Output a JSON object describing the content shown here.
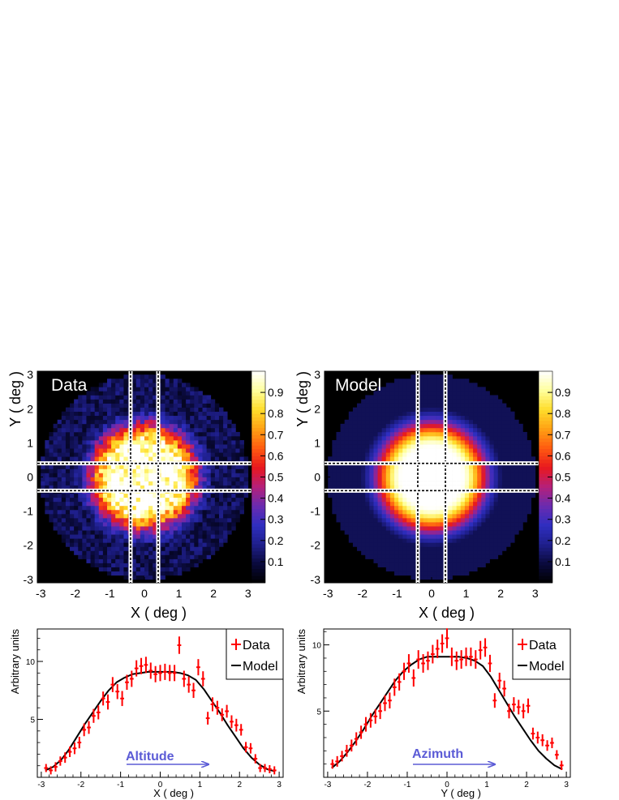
{
  "colors": {
    "data_marker": "#ff0000",
    "model_line": "#000000",
    "annotation": "#5b5bd6",
    "map_background": "#000000",
    "palette": [
      "#000000",
      "#0a0a3c",
      "#1f1f8c",
      "#2e2ec0",
      "#6a2bb0",
      "#b5207a",
      "#e8181e",
      "#ff5a10",
      "#ffa014",
      "#ffdc2a",
      "#ffff9c",
      "#ffffff"
    ]
  },
  "chart_data": [
    {
      "type": "heatmap",
      "id": "data_map",
      "title": "Data",
      "xlabel": "X ( deg )",
      "ylabel": "Y ( deg )",
      "xlim": [
        -3.1,
        3.1
      ],
      "ylim": [
        -3.1,
        3.1
      ],
      "xticks": [
        "-3",
        "-2",
        "-1",
        "0",
        "1",
        "2",
        "3"
      ],
      "yticks": [
        "-3",
        "-2",
        "-1",
        "0",
        "1",
        "2",
        "3"
      ],
      "color_scale": {
        "min": 0,
        "max": 1,
        "ticks": [
          "0.1",
          "0.2",
          "0.3",
          "0.4",
          "0.5",
          "0.6",
          "0.7",
          "0.8",
          "0.9"
        ]
      },
      "binning": {
        "bins": 50,
        "radius_deg": 3.0
      },
      "profile": {
        "core_radius_deg": 0.85,
        "edge_radius_deg": 2.4,
        "peak": 1.0,
        "noise": true
      },
      "slice_band_deg": [
        -0.4,
        0.4
      ]
    },
    {
      "type": "heatmap",
      "id": "model_map",
      "title": "Model",
      "xlabel": "X ( deg )",
      "ylabel": "Y ( deg )",
      "xlim": [
        -3.1,
        3.1
      ],
      "ylim": [
        -3.1,
        3.1
      ],
      "xticks": [
        "-3",
        "-2",
        "-1",
        "0",
        "1",
        "2",
        "3"
      ],
      "yticks": [
        "-3",
        "-2",
        "-1",
        "0",
        "1",
        "2",
        "3"
      ],
      "color_scale": {
        "min": 0,
        "max": 1,
        "ticks": [
          "0.1",
          "0.2",
          "0.3",
          "0.4",
          "0.5",
          "0.6",
          "0.7",
          "0.8",
          "0.9"
        ]
      },
      "binning": {
        "bins": 50,
        "radius_deg": 3.0
      },
      "profile": {
        "core_radius_deg": 0.85,
        "edge_radius_deg": 2.4,
        "peak": 1.0,
        "noise": false
      },
      "slice_band_deg": [
        -0.4,
        0.4
      ]
    },
    {
      "type": "line",
      "id": "altitude_profile",
      "xlabel": "X ( deg )",
      "ylabel": "Arbitrary units",
      "xlim": [
        -3.1,
        3.1
      ],
      "ylim": [
        0,
        12.8
      ],
      "xticks": [
        -3,
        -2,
        -1,
        0,
        1,
        2,
        3
      ],
      "yticks": [
        5,
        10
      ],
      "annotation": "Altitude",
      "legend": {
        "position": "top-right",
        "entries": [
          "Data",
          "Model"
        ]
      },
      "series": [
        {
          "name": "Data",
          "x": [
            -2.88,
            -2.76,
            -2.64,
            -2.52,
            -2.4,
            -2.28,
            -2.16,
            -2.04,
            -1.92,
            -1.8,
            -1.68,
            -1.56,
            -1.44,
            -1.32,
            -1.2,
            -1.08,
            -0.96,
            -0.84,
            -0.72,
            -0.6,
            -0.48,
            -0.36,
            -0.24,
            -0.12,
            0.0,
            0.12,
            0.24,
            0.36,
            0.48,
            0.6,
            0.72,
            0.84,
            0.96,
            1.08,
            1.2,
            1.32,
            1.44,
            1.56,
            1.68,
            1.8,
            1.92,
            2.04,
            2.16,
            2.28,
            2.4,
            2.52,
            2.64,
            2.76,
            2.88
          ],
          "y": [
            0.8,
            0.6,
            0.9,
            1.4,
            1.7,
            2.2,
            2.5,
            3.0,
            4.1,
            4.3,
            5.3,
            5.6,
            6.8,
            6.5,
            8.0,
            7.4,
            6.8,
            8.2,
            8.5,
            9.4,
            9.6,
            9.7,
            9.2,
            8.9,
            9.0,
            9.1,
            9.0,
            9.0,
            11.4,
            8.5,
            8.0,
            7.5,
            9.5,
            8.5,
            5.1,
            6.3,
            6.0,
            5.4,
            5.7,
            4.8,
            4.5,
            4.1,
            2.6,
            2.5,
            1.6,
            0.8,
            0.8,
            0.7,
            0.6
          ],
          "yerr": [
            0.35,
            0.35,
            0.4,
            0.4,
            0.45,
            0.45,
            0.5,
            0.5,
            0.55,
            0.55,
            0.6,
            0.6,
            0.6,
            0.65,
            0.65,
            0.65,
            0.65,
            0.65,
            0.7,
            0.7,
            0.7,
            0.7,
            0.7,
            0.7,
            0.7,
            0.7,
            0.7,
            0.7,
            0.75,
            0.7,
            0.7,
            0.65,
            0.7,
            0.65,
            0.55,
            0.6,
            0.6,
            0.55,
            0.55,
            0.55,
            0.55,
            0.5,
            0.45,
            0.45,
            0.4,
            0.35,
            0.35,
            0.35,
            0.35
          ]
        },
        {
          "name": "Model",
          "x": [
            -2.9,
            -2.7,
            -2.5,
            -2.3,
            -2.1,
            -1.9,
            -1.7,
            -1.5,
            -1.3,
            -1.1,
            -0.9,
            -0.7,
            -0.5,
            -0.3,
            -0.1,
            0.1,
            0.3,
            0.5,
            0.7,
            0.9,
            1.1,
            1.3,
            1.5,
            1.7,
            1.9,
            2.1,
            2.3,
            2.5,
            2.7,
            2.9
          ],
          "y": [
            0.6,
            0.9,
            1.5,
            2.4,
            3.5,
            4.6,
            5.6,
            6.6,
            7.5,
            8.2,
            8.6,
            8.9,
            9.0,
            9.1,
            9.1,
            9.1,
            9.1,
            9.0,
            8.8,
            8.4,
            7.6,
            6.6,
            5.6,
            4.5,
            3.5,
            2.5,
            1.7,
            1.1,
            0.7,
            0.5
          ]
        }
      ]
    },
    {
      "type": "line",
      "id": "azimuth_profile",
      "xlabel": "Y ( deg )",
      "ylabel": "Arbitrary units",
      "xlim": [
        -3.1,
        3.1
      ],
      "ylim": [
        0,
        11.2
      ],
      "xticks": [
        -3,
        -2,
        -1,
        0,
        1,
        2,
        3
      ],
      "yticks": [
        5,
        10
      ],
      "annotation": "Azimuth",
      "legend": {
        "position": "top-right",
        "entries": [
          "Data",
          "Model"
        ]
      },
      "series": [
        {
          "name": "Data",
          "x": [
            -2.88,
            -2.76,
            -2.64,
            -2.52,
            -2.4,
            -2.28,
            -2.16,
            -2.04,
            -1.92,
            -1.8,
            -1.68,
            -1.56,
            -1.44,
            -1.32,
            -1.2,
            -1.08,
            -0.96,
            -0.84,
            -0.72,
            -0.6,
            -0.48,
            -0.36,
            -0.24,
            -0.12,
            0.0,
            0.12,
            0.24,
            0.36,
            0.48,
            0.6,
            0.72,
            0.84,
            0.96,
            1.08,
            1.2,
            1.32,
            1.44,
            1.56,
            1.68,
            1.8,
            1.92,
            2.04,
            2.16,
            2.28,
            2.4,
            2.52,
            2.64,
            2.76,
            2.88
          ],
          "y": [
            1.0,
            1.2,
            1.6,
            2.0,
            2.4,
            2.9,
            3.4,
            4.0,
            4.3,
            4.6,
            5.0,
            5.6,
            5.8,
            6.8,
            7.2,
            8.0,
            8.6,
            7.5,
            8.9,
            8.6,
            8.8,
            9.3,
            9.7,
            10.1,
            10.5,
            9.1,
            8.8,
            8.9,
            9.1,
            9.1,
            8.9,
            9.6,
            9.8,
            8.6,
            5.8,
            7.3,
            6.7,
            5.0,
            5.5,
            5.3,
            5.0,
            5.4,
            3.3,
            3.0,
            2.8,
            2.4,
            2.6,
            1.7,
            0.9
          ],
          "yerr": [
            0.35,
            0.4,
            0.4,
            0.45,
            0.45,
            0.5,
            0.5,
            0.55,
            0.55,
            0.55,
            0.6,
            0.6,
            0.6,
            0.65,
            0.65,
            0.65,
            0.7,
            0.65,
            0.7,
            0.7,
            0.7,
            0.7,
            0.7,
            0.7,
            0.75,
            0.7,
            0.7,
            0.7,
            0.7,
            0.7,
            0.7,
            0.7,
            0.7,
            0.65,
            0.55,
            0.6,
            0.6,
            0.55,
            0.55,
            0.55,
            0.55,
            0.55,
            0.45,
            0.45,
            0.45,
            0.4,
            0.4,
            0.35,
            0.35
          ]
        },
        {
          "name": "Model",
          "x": [
            -2.9,
            -2.7,
            -2.5,
            -2.3,
            -2.1,
            -1.9,
            -1.7,
            -1.5,
            -1.3,
            -1.1,
            -0.9,
            -0.7,
            -0.5,
            -0.3,
            -0.1,
            0.1,
            0.3,
            0.5,
            0.7,
            0.9,
            1.1,
            1.3,
            1.5,
            1.7,
            1.9,
            2.1,
            2.3,
            2.5,
            2.7,
            2.9
          ],
          "y": [
            0.7,
            1.2,
            1.9,
            2.7,
            3.6,
            4.6,
            5.5,
            6.4,
            7.3,
            8.0,
            8.5,
            8.9,
            9.1,
            9.1,
            9.1,
            9.1,
            9.1,
            9.0,
            8.8,
            8.4,
            7.6,
            6.6,
            5.6,
            4.6,
            3.7,
            2.8,
            2.0,
            1.4,
            0.9,
            0.6
          ]
        }
      ]
    }
  ]
}
